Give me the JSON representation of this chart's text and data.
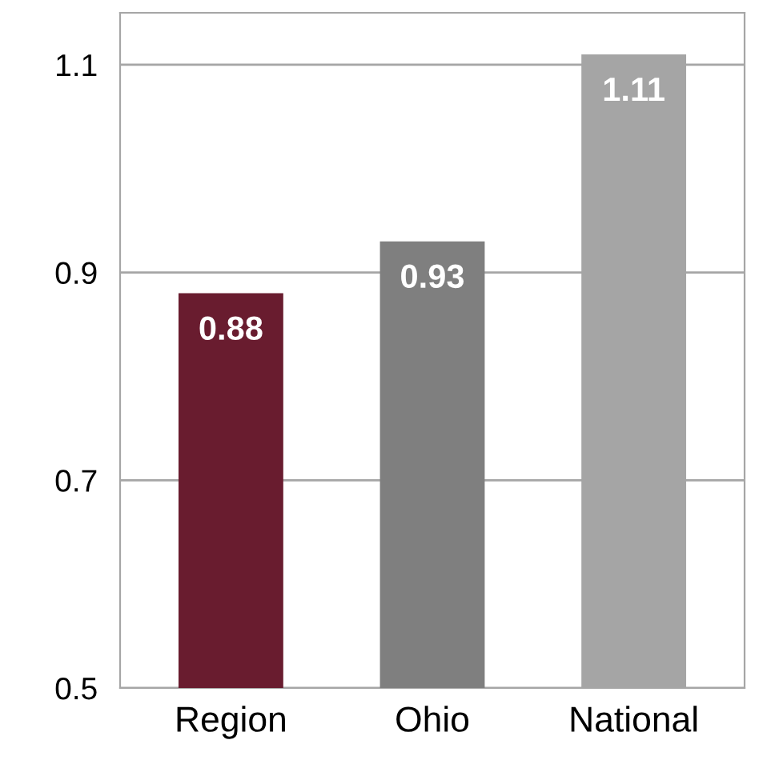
{
  "chart_data": {
    "type": "bar",
    "categories": [
      "Region",
      "Ohio",
      "National"
    ],
    "values": [
      0.88,
      0.93,
      1.11
    ],
    "colors": [
      "#691c2f",
      "#7f7f7f",
      "#a5a5a5"
    ],
    "ylim": [
      0.5,
      1.15
    ],
    "yticks": [
      0.5,
      0.7,
      0.9,
      1.1
    ],
    "grid": "y",
    "data_labels": true
  }
}
